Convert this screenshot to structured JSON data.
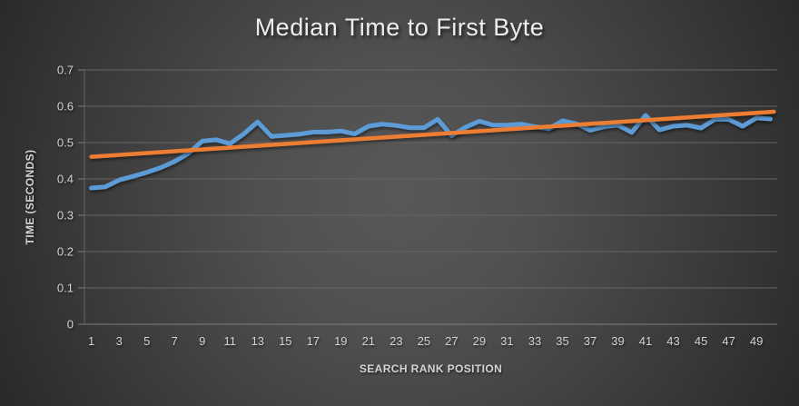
{
  "chart_data": {
    "type": "line",
    "title": "Median Time to First Byte",
    "xlabel": "SEARCH RANK POSITION",
    "ylabel": "TIME (SECONDS)",
    "x": [
      1,
      2,
      3,
      4,
      5,
      6,
      7,
      8,
      9,
      10,
      11,
      12,
      13,
      14,
      15,
      16,
      17,
      18,
      19,
      20,
      21,
      22,
      23,
      24,
      25,
      26,
      27,
      28,
      29,
      30,
      31,
      32,
      33,
      34,
      35,
      36,
      37,
      38,
      39,
      40,
      41,
      42,
      43,
      44,
      45,
      46,
      47,
      48,
      49,
      50
    ],
    "series": [
      {
        "role": "median-ttfb-line",
        "color": "#5B9BD5",
        "values": [
          0.375,
          0.378,
          0.397,
          0.407,
          0.418,
          0.431,
          0.448,
          0.47,
          0.504,
          0.508,
          0.497,
          0.524,
          0.557,
          0.517,
          0.52,
          0.523,
          0.529,
          0.529,
          0.532,
          0.524,
          0.545,
          0.551,
          0.547,
          0.541,
          0.541,
          0.564,
          0.519,
          0.542,
          0.559,
          0.548,
          0.548,
          0.551,
          0.544,
          0.538,
          0.56,
          0.552,
          0.534,
          0.544,
          0.548,
          0.528,
          0.575,
          0.535,
          0.545,
          0.548,
          0.54,
          0.564,
          0.564,
          0.545,
          0.568,
          0.565
        ]
      }
    ],
    "trendline": {
      "role": "linear-trendline",
      "color": "#ED7D31",
      "y_start": 0.461,
      "y_end": 0.585
    },
    "ylim": [
      0,
      0.7
    ],
    "yticks": [
      0,
      0.1,
      0.2,
      0.3,
      0.4,
      0.5,
      0.6,
      0.7
    ],
    "ytick_labels": [
      "0",
      "0.1",
      "0.2",
      "0.3",
      "0.4",
      "0.5",
      "0.6",
      "0.7"
    ],
    "xtick_labels": [
      "1",
      "3",
      "5",
      "7",
      "9",
      "11",
      "13",
      "15",
      "17",
      "19",
      "21",
      "23",
      "25",
      "27",
      "29",
      "31",
      "33",
      "35",
      "37",
      "39",
      "41",
      "43",
      "45",
      "47",
      "49"
    ],
    "grid": "horizontal",
    "legend": "none",
    "colors": {
      "series": "#5B9BD5",
      "trendline": "#ED7D31",
      "background_center": "#585858",
      "background_edge": "#292929",
      "gridline": "#666666",
      "axis_line": "#7e7e7e",
      "tick_text": "#d2d2d2",
      "title_text": "#ededed"
    }
  }
}
